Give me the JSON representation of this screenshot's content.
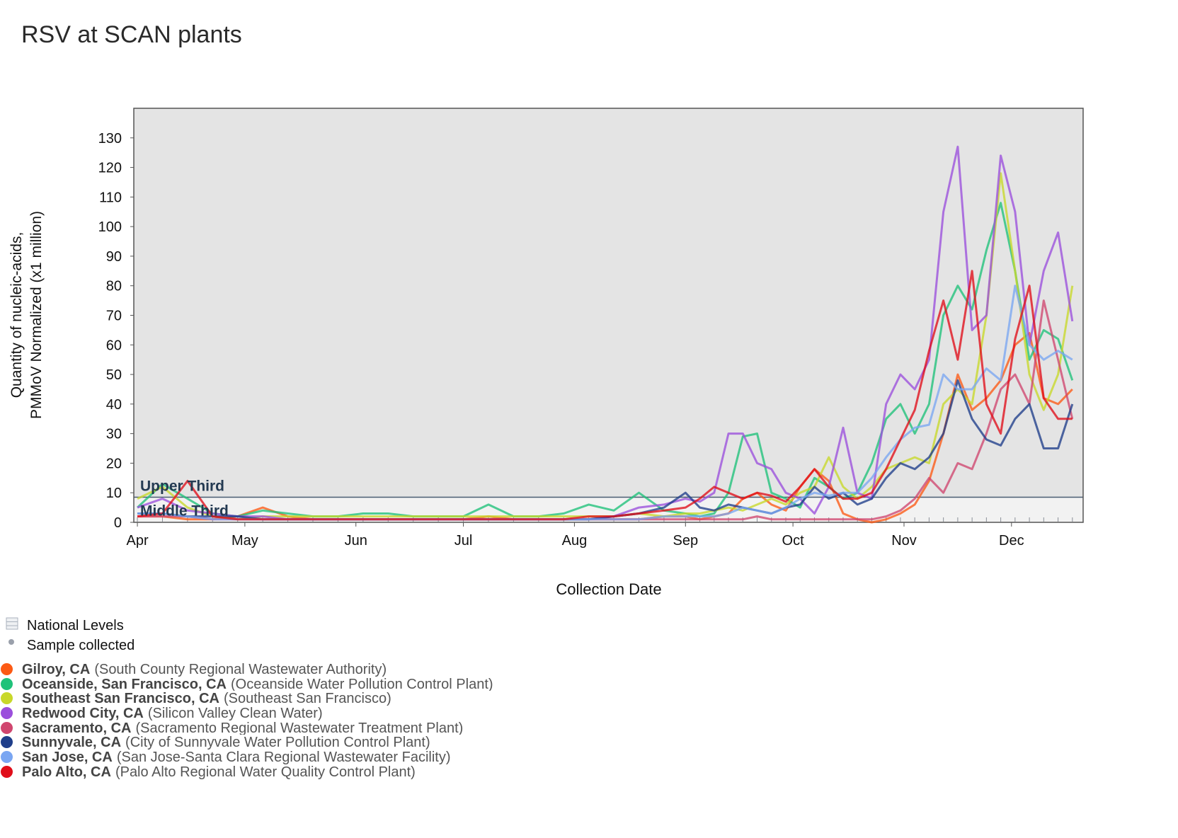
{
  "chart_data": {
    "type": "line",
    "title": "RSV at SCAN plants",
    "xlabel": "Collection Date",
    "ylabel": [
      "Quantity of nucleic-acids,",
      "PMMoV Normalized (x1 million)"
    ],
    "ylim": [
      0,
      140
    ],
    "yticks": [
      0,
      10,
      20,
      30,
      40,
      50,
      60,
      70,
      80,
      90,
      100,
      110,
      120,
      130
    ],
    "xticks": [
      {
        "date": "2023-04-01",
        "label": "Apr"
      },
      {
        "date": "2023-05-01",
        "label": "May"
      },
      {
        "date": "2023-06-01",
        "label": "Jun"
      },
      {
        "date": "2023-07-01",
        "label": "Jul"
      },
      {
        "date": "2023-08-01",
        "label": "Aug"
      },
      {
        "date": "2023-09-01",
        "label": "Sep"
      },
      {
        "date": "2023-10-01",
        "label": "Oct"
      },
      {
        "date": "2023-11-01",
        "label": "Nov"
      },
      {
        "date": "2023-12-01",
        "label": "Dec"
      }
    ],
    "xlim": [
      "2023-03-31",
      "2023-12-21"
    ],
    "background": "#e4e4e4",
    "national_levels": [
      {
        "label": "Upper Third",
        "from": 8.5,
        "to": 140,
        "color": "#e4e4e4"
      },
      {
        "label": "Middle Third",
        "from": 0,
        "to": 8.5,
        "color": "#f2f2f2"
      }
    ],
    "x": [
      "2023-04-01",
      "2023-04-08",
      "2023-04-15",
      "2023-04-22",
      "2023-04-29",
      "2023-05-06",
      "2023-05-13",
      "2023-05-20",
      "2023-05-27",
      "2023-06-03",
      "2023-06-10",
      "2023-06-17",
      "2023-06-24",
      "2023-07-01",
      "2023-07-08",
      "2023-07-15",
      "2023-07-22",
      "2023-07-29",
      "2023-08-05",
      "2023-08-12",
      "2023-08-19",
      "2023-08-26",
      "2023-09-01",
      "2023-09-05",
      "2023-09-09",
      "2023-09-13",
      "2023-09-17",
      "2023-09-21",
      "2023-09-25",
      "2023-09-29",
      "2023-10-03",
      "2023-10-07",
      "2023-10-11",
      "2023-10-15",
      "2023-10-19",
      "2023-10-23",
      "2023-10-27",
      "2023-10-31",
      "2023-11-04",
      "2023-11-08",
      "2023-11-12",
      "2023-11-16",
      "2023-11-20",
      "2023-11-24",
      "2023-11-28",
      "2023-12-02",
      "2023-12-06",
      "2023-12-10",
      "2023-12-14",
      "2023-12-18"
    ],
    "series": [
      {
        "name": "Gilroy, CA",
        "facility": "(South County Regional Wastewater Authority)",
        "color": "#fc5a14",
        "values": [
          2,
          2,
          1,
          1,
          2,
          5,
          2,
          1,
          1,
          1,
          1,
          1,
          1,
          1,
          2,
          1,
          1,
          1,
          1,
          1,
          1,
          2,
          2,
          1,
          2,
          3,
          8,
          10,
          6,
          4,
          12,
          18,
          14,
          3,
          1,
          0,
          1,
          3,
          6,
          14,
          30,
          50,
          38,
          42,
          48,
          60,
          64,
          42,
          40,
          45
        ]
      },
      {
        "name": "Oceanside, San Francisco, CA",
        "facility": "(Oceanside Water Pollution Control Plant)",
        "color": "#1fc27a",
        "values": [
          5,
          13,
          8,
          3,
          2,
          4,
          3,
          2,
          2,
          3,
          3,
          2,
          2,
          2,
          6,
          2,
          2,
          3,
          6,
          4,
          10,
          4,
          3,
          2,
          3,
          10,
          29,
          30,
          10,
          8,
          5,
          15,
          12,
          8,
          10,
          20,
          35,
          40,
          30,
          40,
          70,
          80,
          72,
          92,
          108,
          85,
          55,
          65,
          62,
          48
        ]
      },
      {
        "name": "Southeast San Francisco, CA",
        "facility": "(Southeast San Francisco)",
        "color": "#c8d82a",
        "values": [
          8,
          12,
          5,
          2,
          1,
          2,
          2,
          2,
          2,
          2,
          2,
          2,
          2,
          2,
          2,
          2,
          2,
          2,
          2,
          2,
          3,
          2,
          3,
          3,
          4,
          5,
          4,
          6,
          8,
          6,
          10,
          12,
          22,
          12,
          8,
          12,
          18,
          20,
          22,
          20,
          40,
          45,
          40,
          70,
          118,
          85,
          50,
          38,
          50,
          80
        ]
      },
      {
        "name": "Redwood City, CA",
        "facility": "(Silicon Valley Clean Water)",
        "color": "#9b4fdc",
        "values": [
          5,
          8,
          4,
          3,
          2,
          2,
          1,
          1,
          1,
          1,
          1,
          1,
          1,
          1,
          1,
          1,
          1,
          1,
          1,
          2,
          5,
          6,
          8,
          7,
          10,
          30,
          30,
          20,
          18,
          10,
          8,
          3,
          12,
          32,
          10,
          8,
          40,
          50,
          45,
          55,
          105,
          127,
          65,
          70,
          124,
          105,
          60,
          85,
          98,
          68
        ]
      },
      {
        "name": "Sacramento, CA",
        "facility": "(Sacramento Regional Wastewater Treatment Plant)",
        "color": "#d0466f",
        "values": [
          2,
          2,
          2,
          1,
          1,
          1,
          1,
          1,
          1,
          1,
          1,
          1,
          1,
          1,
          1,
          1,
          1,
          1,
          1,
          1,
          1,
          1,
          1,
          1,
          1,
          1,
          1,
          2,
          1,
          1,
          1,
          1,
          1,
          1,
          1,
          1,
          2,
          4,
          8,
          15,
          10,
          20,
          18,
          30,
          45,
          50,
          40,
          75,
          55,
          35
        ]
      },
      {
        "name": "Sunnyvale, CA",
        "facility": "(City of Sunnyvale Water Pollution Control Plant)",
        "color": "#1f3e8a",
        "values": [
          3,
          3,
          2,
          2,
          2,
          1,
          1,
          1,
          1,
          1,
          1,
          1,
          1,
          1,
          1,
          1,
          1,
          1,
          1,
          2,
          3,
          5,
          10,
          5,
          4,
          6,
          5,
          4,
          3,
          5,
          6,
          12,
          8,
          10,
          6,
          8,
          15,
          20,
          18,
          22,
          30,
          48,
          35,
          28,
          26,
          35,
          40,
          25,
          25,
          40
        ]
      },
      {
        "name": "San Jose, CA",
        "facility": "(San Jose-Santa Clara Regional Wastewater Facility)",
        "color": "#7aa6f2",
        "values": [
          3,
          3,
          2,
          1,
          1,
          1,
          1,
          1,
          1,
          1,
          1,
          1,
          1,
          1,
          1,
          1,
          1,
          1,
          1,
          1,
          1,
          2,
          2,
          2,
          2,
          3,
          5,
          4,
          3,
          5,
          8,
          10,
          9,
          10,
          10,
          15,
          22,
          28,
          32,
          33,
          50,
          45,
          45,
          52,
          48,
          80,
          60,
          55,
          58,
          55
        ]
      },
      {
        "name": "Palo Alto, CA",
        "facility": "(Palo Alto Regional Water Quality Control Plant)",
        "color": "#e00e1a",
        "values": [
          2,
          3,
          14,
          2,
          1,
          1,
          1,
          1,
          1,
          1,
          1,
          1,
          1,
          1,
          1,
          1,
          1,
          1,
          2,
          2,
          3,
          4,
          5,
          8,
          12,
          10,
          8,
          10,
          9,
          7,
          12,
          18,
          12,
          8,
          8,
          10,
          18,
          28,
          38,
          58,
          75,
          55,
          85,
          40,
          30,
          62,
          80,
          42,
          35,
          35
        ]
      }
    ],
    "legend": {
      "placement": "bottom-left",
      "national_levels_label": "National Levels",
      "sample_collected_label": "Sample collected",
      "sample_marker_color": "#9aa0ab"
    }
  }
}
